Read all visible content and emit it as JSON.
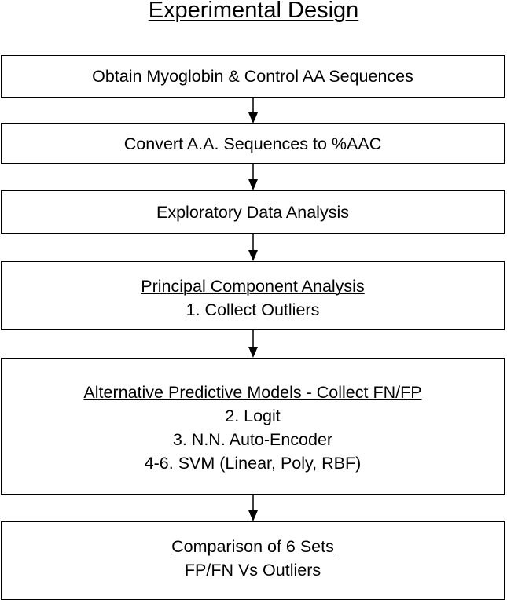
{
  "diagram": {
    "title": "Experimental Design",
    "steps": [
      {
        "heading": "Obtain Myoglobin & Control AA Sequences",
        "items": []
      },
      {
        "heading": "Convert A.A. Sequences to %AAC",
        "items": []
      },
      {
        "heading": "Exploratory Data Analysis",
        "items": []
      },
      {
        "heading": "Principal Component Analysis",
        "items": [
          "1. Collect Outliers"
        ]
      },
      {
        "heading": "Alternative Predictive Models - Collect FN/FP",
        "items": [
          "2. Logit",
          "3. N.N. Auto-Encoder",
          "4-6. SVM (Linear, Poly, RBF)"
        ]
      },
      {
        "heading": "Comparison of 6 Sets",
        "items": [
          "FP/FN Vs Outliers"
        ]
      }
    ],
    "colors": {
      "line": "#000000",
      "background": "#ffffff"
    }
  }
}
